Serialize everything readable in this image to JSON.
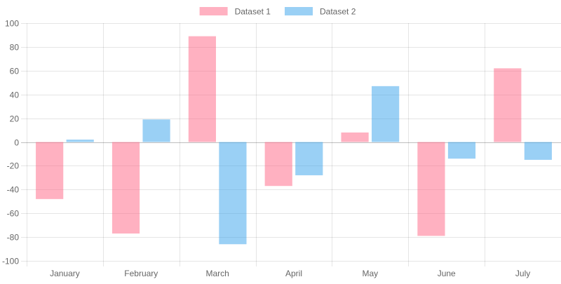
{
  "chart_data": {
    "type": "bar",
    "title": "",
    "xlabel": "",
    "ylabel": "",
    "categories": [
      "January",
      "February",
      "March",
      "April",
      "May",
      "June",
      "July"
    ],
    "series": [
      {
        "name": "Dataset 1",
        "color": "#ff6384",
        "values": [
          -48,
          -77,
          89,
          -37,
          8,
          -79,
          62
        ]
      },
      {
        "name": "Dataset 2",
        "color": "#36a2eb",
        "values": [
          2,
          19,
          -86,
          -28,
          47,
          -14,
          -15
        ]
      }
    ],
    "ylim": [
      -100,
      100
    ],
    "yticks": [
      100,
      80,
      60,
      40,
      20,
      0,
      -20,
      -40,
      -60,
      -80,
      -100
    ],
    "grid": true,
    "legend": "top-center"
  }
}
